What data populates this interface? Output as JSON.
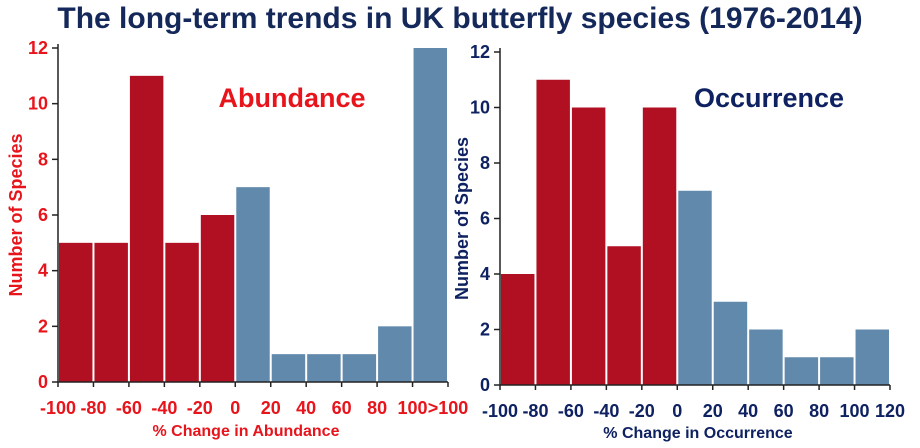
{
  "title": "The long-term trends in UK butterfly species (1976-2014)",
  "colors": {
    "decline": "#b01022",
    "increase": "#6089ab",
    "title": "#14285a",
    "red_text": "#e8141c",
    "navy_text": "#0e2160"
  },
  "chart_data": [
    {
      "type": "bar",
      "panel_label": "Abundance",
      "xlabel": "% Change in Abundance",
      "ylabel": "Number of Species",
      "ylim": [
        0,
        12
      ],
      "yticks": [
        "0",
        "2",
        "4",
        "6",
        "8",
        "10",
        "12"
      ],
      "xticks": [
        "-100",
        "-80",
        "-60",
        "-40",
        "-20",
        "0",
        "20",
        "40",
        "60",
        "80",
        "100",
        ">100"
      ],
      "bins": [
        "-100 to -80",
        "-80 to -60",
        "-60 to -40",
        "-40 to -20",
        "-20 to 0",
        "0 to 20",
        "20 to 40",
        "40 to 60",
        "60 to 80",
        "80 to 100",
        ">100"
      ],
      "values": [
        5,
        5,
        11,
        5,
        6,
        7,
        1,
        1,
        1,
        2,
        12
      ],
      "bar_colors": [
        "decline",
        "decline",
        "decline",
        "decline",
        "decline",
        "increase",
        "increase",
        "increase",
        "increase",
        "increase",
        "increase"
      ],
      "grid": false
    },
    {
      "type": "bar",
      "panel_label": "Occurrence",
      "xlabel": "% Change in Occurrence",
      "ylabel": "Number of Species",
      "ylim": [
        0,
        12
      ],
      "yticks": [
        "0",
        "2",
        "4",
        "6",
        "8",
        "10",
        "12"
      ],
      "xticks": [
        "-100",
        "-80",
        "-60",
        "-40",
        "-20",
        "0",
        "20",
        "40",
        "60",
        "80",
        "100",
        "120"
      ],
      "bins": [
        "-100 to -80",
        "-80 to -60",
        "-60 to -40",
        "-40 to -20",
        "-20 to 0",
        "0 to 20",
        "20 to 40",
        "40 to 60",
        "60 to 80",
        "80 to 100",
        "100 to 120"
      ],
      "values": [
        4,
        11,
        10,
        5,
        10,
        7,
        3,
        2,
        1,
        1,
        2
      ],
      "bar_colors": [
        "decline",
        "decline",
        "decline",
        "decline",
        "decline",
        "increase",
        "increase",
        "increase",
        "increase",
        "increase",
        "increase"
      ],
      "grid": false
    }
  ]
}
